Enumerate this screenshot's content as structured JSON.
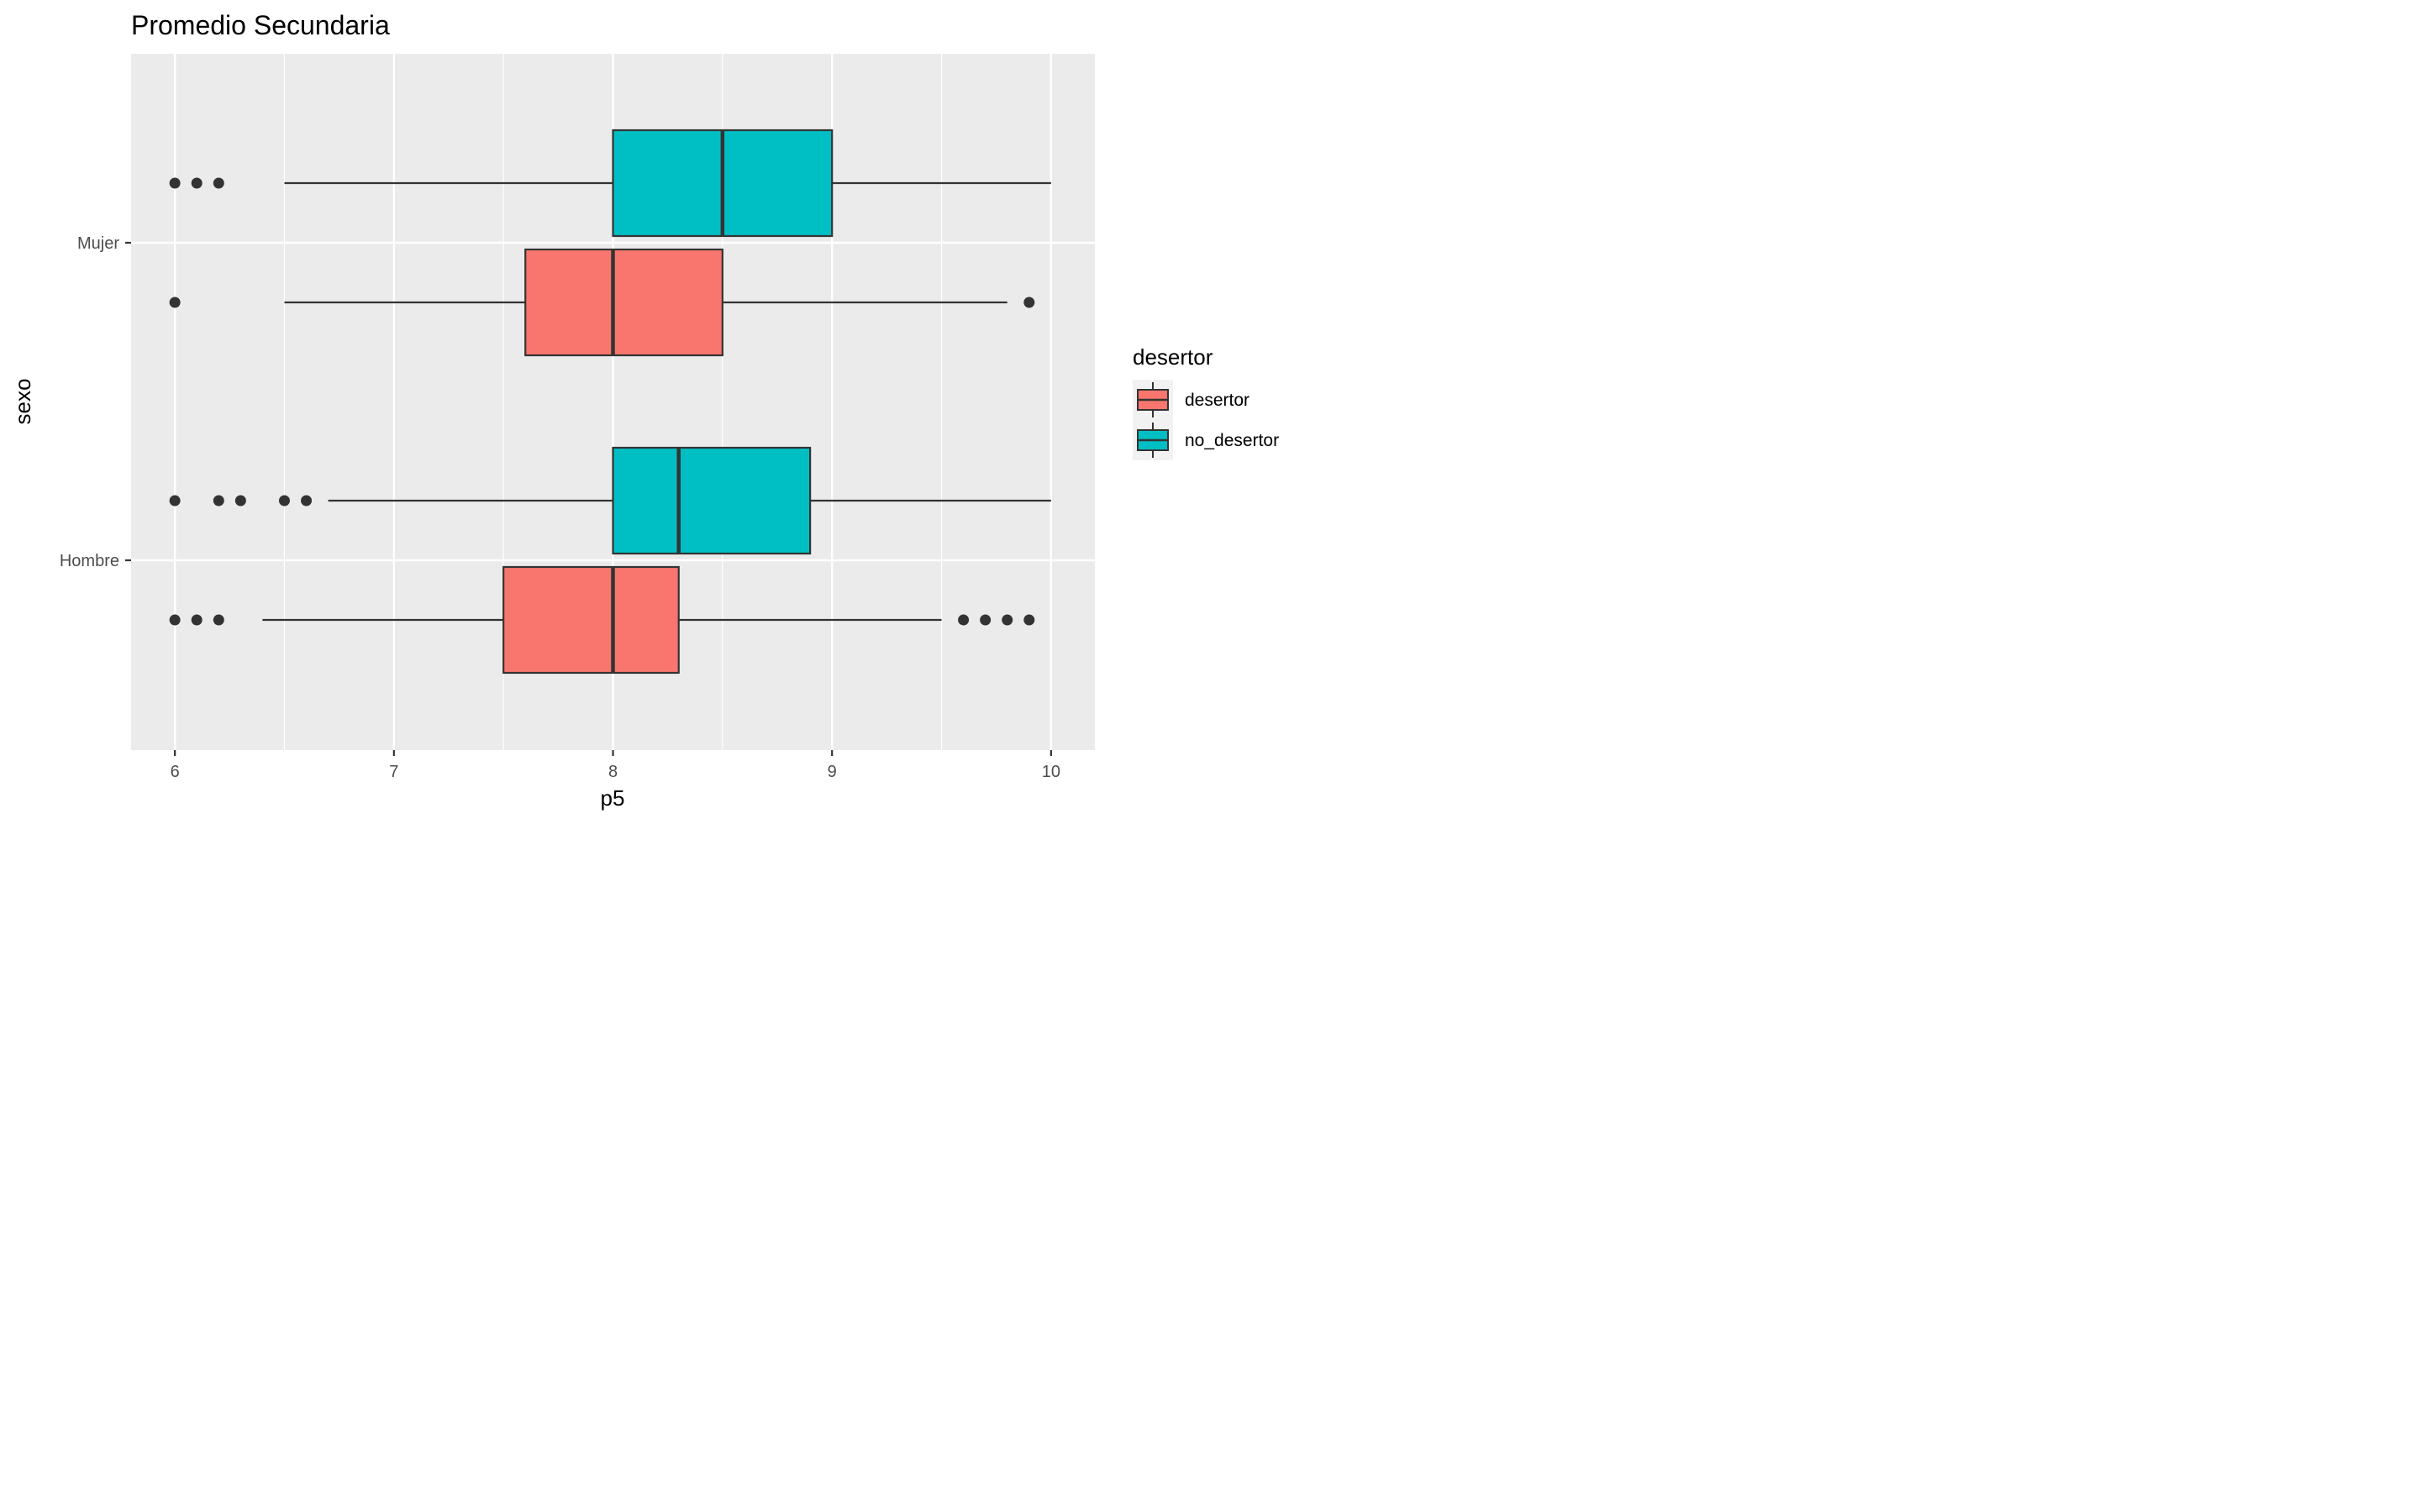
{
  "chart_data": {
    "type": "boxplot",
    "orientation": "horizontal",
    "title": "Promedio Secundaria",
    "xlabel": "p5",
    "ylabel": "sexo",
    "xlim": [
      5.8,
      10.2
    ],
    "x_ticks": [
      6,
      7,
      8,
      9,
      10
    ],
    "categories": [
      "Hombre",
      "Mujer"
    ],
    "legend": {
      "title": "desertor",
      "position": "right",
      "entries": [
        "desertor",
        "no_desertor"
      ]
    },
    "colors": {
      "desertor": "#F8766D",
      "no_desertor": "#00BFC4",
      "panel": "#EBEBEB",
      "grid": "#FFFFFF"
    },
    "grid": true,
    "series": [
      {
        "name": "desertor",
        "boxes": [
          {
            "category": "Hombre",
            "whisker_low": 6.4,
            "q1": 7.5,
            "median": 8.0,
            "q3": 8.3,
            "whisker_high": 9.5,
            "outliers": [
              6.0,
              6.1,
              6.2,
              9.6,
              9.7,
              9.8,
              9.9
            ]
          },
          {
            "category": "Mujer",
            "whisker_low": 6.5,
            "q1": 7.6,
            "median": 8.0,
            "q3": 8.5,
            "whisker_high": 9.8,
            "outliers": [
              6.0,
              9.9
            ]
          }
        ]
      },
      {
        "name": "no_desertor",
        "boxes": [
          {
            "category": "Hombre",
            "whisker_low": 6.7,
            "q1": 8.0,
            "median": 8.3,
            "q3": 8.9,
            "whisker_high": 10.0,
            "outliers": [
              6.0,
              6.2,
              6.3,
              6.5,
              6.6
            ]
          },
          {
            "category": "Mujer",
            "whisker_low": 6.5,
            "q1": 8.0,
            "median": 8.5,
            "q3": 9.0,
            "whisker_high": 10.0,
            "outliers": [
              6.0,
              6.1,
              6.2
            ]
          }
        ]
      }
    ]
  }
}
